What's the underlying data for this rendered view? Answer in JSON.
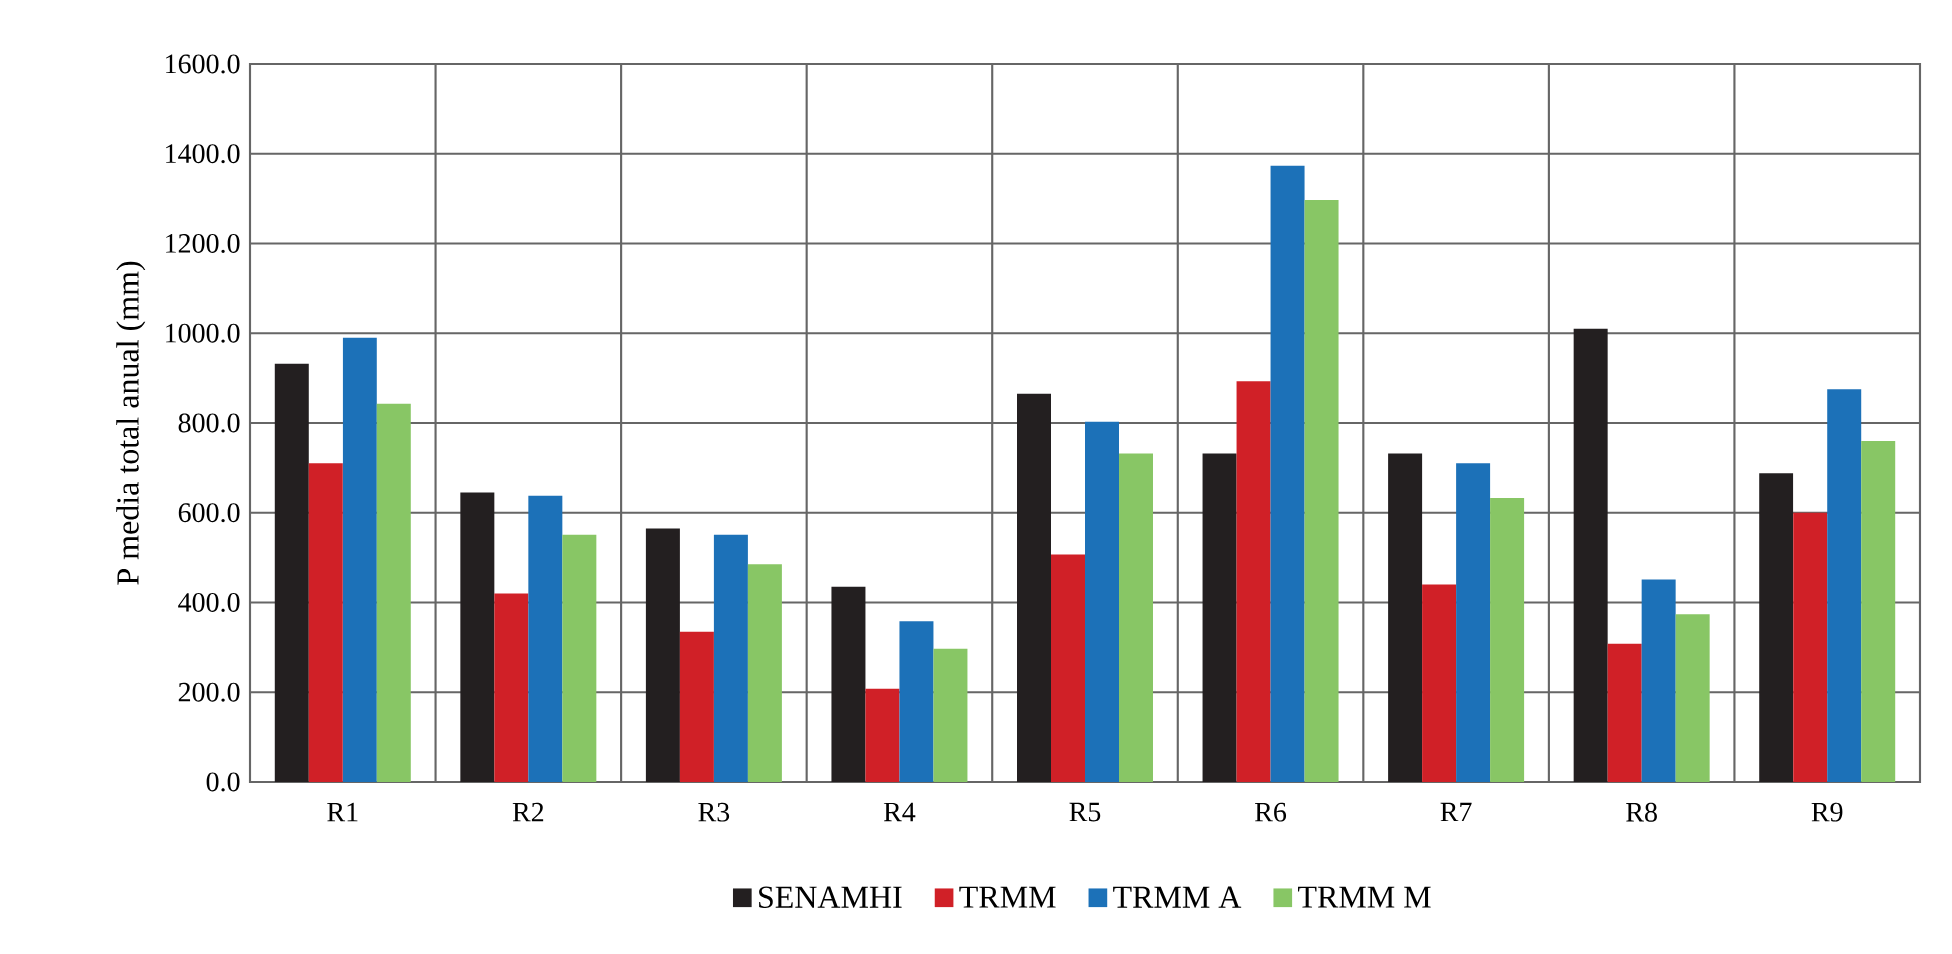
{
  "chart_data": {
    "type": "bar",
    "ylabel": "P media total anual (mm)",
    "categories": [
      "R1",
      "R2",
      "R3",
      "R4",
      "R5",
      "R6",
      "R7",
      "R8",
      "R9"
    ],
    "series": [
      {
        "name": "SENAMHI",
        "color": "#231f20",
        "values": [
          932,
          645,
          565,
          435,
          865,
          732,
          732,
          1010,
          688
        ]
      },
      {
        "name": "TRMM",
        "color": "#d02027",
        "values": [
          710,
          420,
          335,
          208,
          507,
          893,
          440,
          308,
          600
        ]
      },
      {
        "name": "TRMM A",
        "color": "#1c71b8",
        "values": [
          990,
          638,
          551,
          358,
          803,
          1373,
          710,
          451,
          875
        ]
      },
      {
        "name": "TRMM M",
        "color": "#88c665",
        "values": [
          843,
          551,
          485,
          297,
          732,
          1297,
          633,
          374,
          760
        ]
      }
    ],
    "ylim": [
      0,
      1600
    ],
    "yticks": [
      {
        "value": 0,
        "label": "0.0"
      },
      {
        "value": 200,
        "label": "200.0"
      },
      {
        "value": 400,
        "label": "400.0"
      },
      {
        "value": 600,
        "label": "600.0"
      },
      {
        "value": 800,
        "label": "800.0"
      },
      {
        "value": 1000,
        "label": "1000.0"
      },
      {
        "value": 1200,
        "label": "1200.0"
      },
      {
        "value": 1400,
        "label": "1400.0"
      },
      {
        "value": 1600,
        "label": "1600.0"
      }
    ],
    "grid": true,
    "legend": "bottom"
  }
}
